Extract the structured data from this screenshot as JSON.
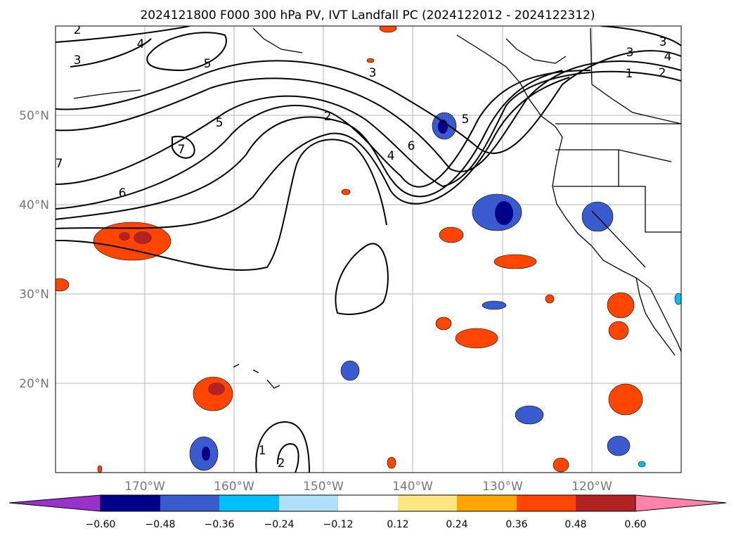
{
  "title": "2024121800 F000 300 hPa PV, IVT Landfall PC (2024122012 - 2024122312)",
  "map": {
    "lon_range": [
      -180,
      -110
    ],
    "lat_range": [
      10,
      60
    ],
    "lon_ticks": [
      "170°W",
      "160°W",
      "150°W",
      "140°W",
      "130°W",
      "120°W"
    ],
    "lat_ticks": [
      "20°N",
      "30°N",
      "40°N",
      "50°N"
    ],
    "gridlines": true
  },
  "contours": {
    "color": "#000000",
    "labels": [
      "2",
      "3",
      "4",
      "5",
      "3",
      "2",
      "5",
      "6",
      "4",
      "6",
      "5",
      "3",
      "4",
      "2",
      "1",
      "3",
      "1",
      "2",
      "7",
      "7"
    ]
  },
  "colorbar": {
    "ticks": [
      "−0.60",
      "−0.48",
      "−0.36",
      "−0.24",
      "−0.12",
      "0.12",
      "0.24",
      "0.36",
      "0.48",
      "0.60"
    ],
    "colors": [
      "#9932cc",
      "#00008b",
      "#3a5bcd",
      "#00bfff",
      "#b0e0f8",
      "#ffffff",
      "#ffe680",
      "#ffa500",
      "#ff4500",
      "#b22222",
      "#ff82ab"
    ],
    "extend": "both"
  }
}
